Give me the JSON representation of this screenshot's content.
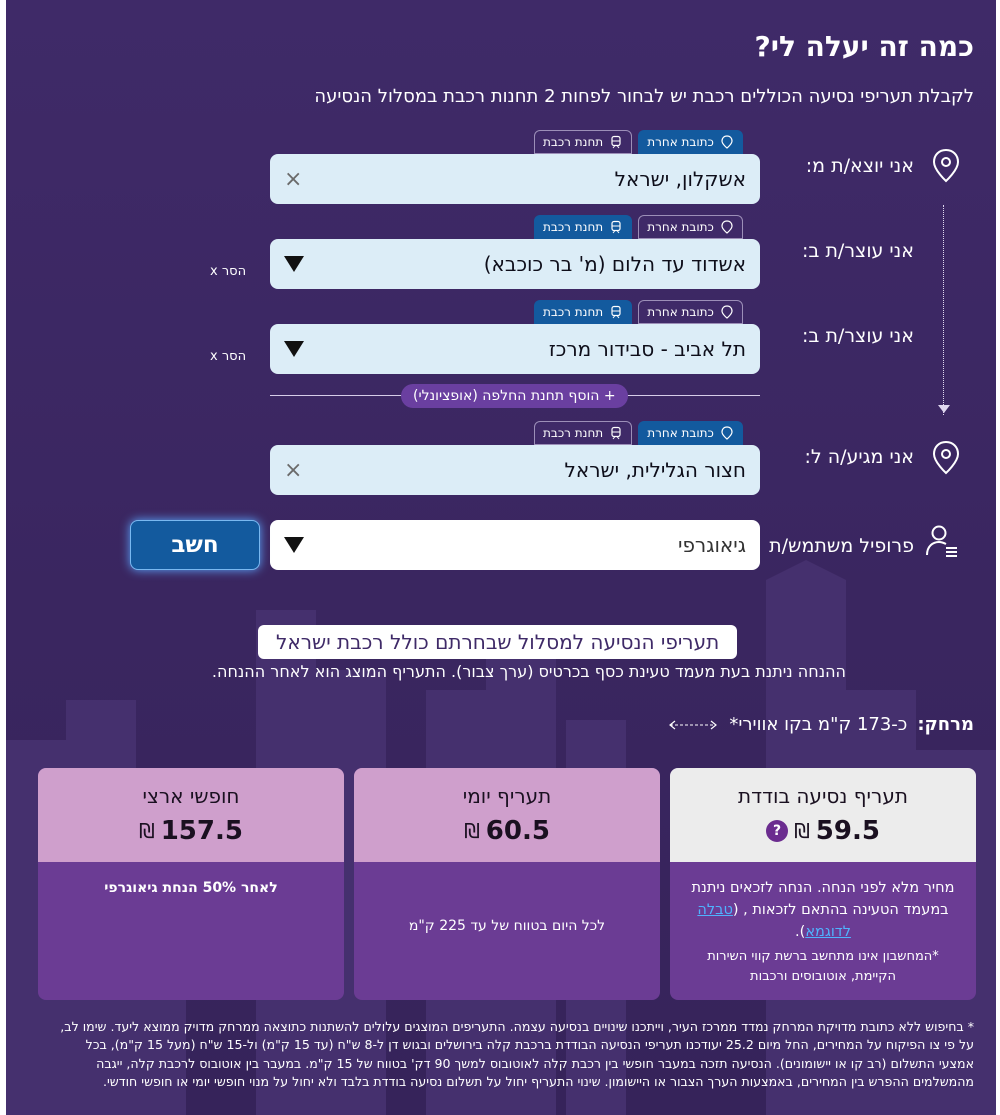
{
  "title": "כמה זה יעלה לי?",
  "subtitle": "לקבלת תעריפי נסיעה הכוללים רכבת יש לבחור לפחות 2 תחנות רכבת במסלול הנסיעה",
  "colors": {
    "background": "#3f2a68",
    "field": "#dcedf7",
    "accent_blue": "#135a9e",
    "card_purple": "#6b3c94",
    "card_head_light": "#ececec",
    "card_head_pink": "#cf9fcc"
  },
  "option_train": "תחנת רכבת",
  "option_address": "כתובת אחרת",
  "remove_label": "x הסר",
  "origin": {
    "label": "אני יוצא/ת מ:",
    "value": "אשקלון, ישראל",
    "clear": "×"
  },
  "stop1": {
    "label": "אני עוצר/ת ב:",
    "value": "אשדוד עד הלום (מ' בר כוכבא)"
  },
  "stop2": {
    "label": "אני עוצר/ת ב:",
    "value": "תל אביב - סבידור מרכז"
  },
  "add_transfer": "+ הוסף תחנת החלפה (אופציונלי)",
  "destination": {
    "label": "אני מגיע/ה ל:",
    "value": "חצור הגלילית, ישראל",
    "clear": "×"
  },
  "profile": {
    "label": "פרופיל משתמש/ת",
    "value": "גיאוגרפי"
  },
  "calculate_label": "חשב",
  "results": {
    "title": "תעריפי הנסיעה למסלול שבחרתם כולל רכבת ישראל",
    "note": "ההנחה ניתנת בעת מעמד טעינת כסף בכרטיס (ערך צבור). התעריף המוצג הוא לאחר ההנחה.",
    "distance_label": "מרחק:",
    "distance_value": "כ-173 ק\"מ בקו אווירי*"
  },
  "cards": {
    "single": {
      "name": "תעריף נסיעה בודדת",
      "price": "59.5",
      "currency": "₪",
      "help": "?",
      "text_main": "מחיר מלא לפני הנחה. הנחה לזכאים ניתנת במעמד הטעינה בהתאם לזכאות , (",
      "link": "טבלה לדוגמא",
      "text_after": ").",
      "text_note": "*המחשבון אינו מתחשב ברשת קווי השירות הקיימת, אוטובוסים ורכבות"
    },
    "daily": {
      "name": "תעריף יומי",
      "price": "60.5",
      "currency": "₪",
      "text": "לכל היום בטווח של עד 225 ק\"מ"
    },
    "national": {
      "name": "חופשי ארצי",
      "price": "157.5",
      "currency": "₪",
      "text": "לאחר 50% הנחת גיאוגרפי"
    }
  },
  "footnote": "* בחיפוש ללא כתובת מדויקת המרחק נמדד ממרכז העיר, וייתכנו שינויים בנסיעה עצמה. התעריפים המוצגים עלולים להשתנות כתוצאה ממרחק מדויק ממוצא ליעד. שימו לב, על פי צו הפיקוח על המחירים, החל מיום 25.2 יעודכנו תעריפי הנסיעה הבודדת ברכבת קלה בירושלים ובגוש דן ל-8 ש\"ח (עד 15 ק\"מ) ול-15 ש\"ח (מעל 15 ק\"מ), בכל אמצעי התשלום (רב קו או יישומונים). הנסיעה תזכה במעבר חופשי בין רכבת קלה לאוטובוס למשך 90 דק' בטווח של 15 ק\"מ. במעבר בין אוטובוס לרכבת קלה, ייגבה מהמשלמים ההפרש בין המחירים, באמצעות הערך הצבור או היישומון. שינוי התעריף יחול על תשלום נסיעה בודדת בלבד ולא יחול על מנוי חופשי יומי או חופשי חודשי."
}
